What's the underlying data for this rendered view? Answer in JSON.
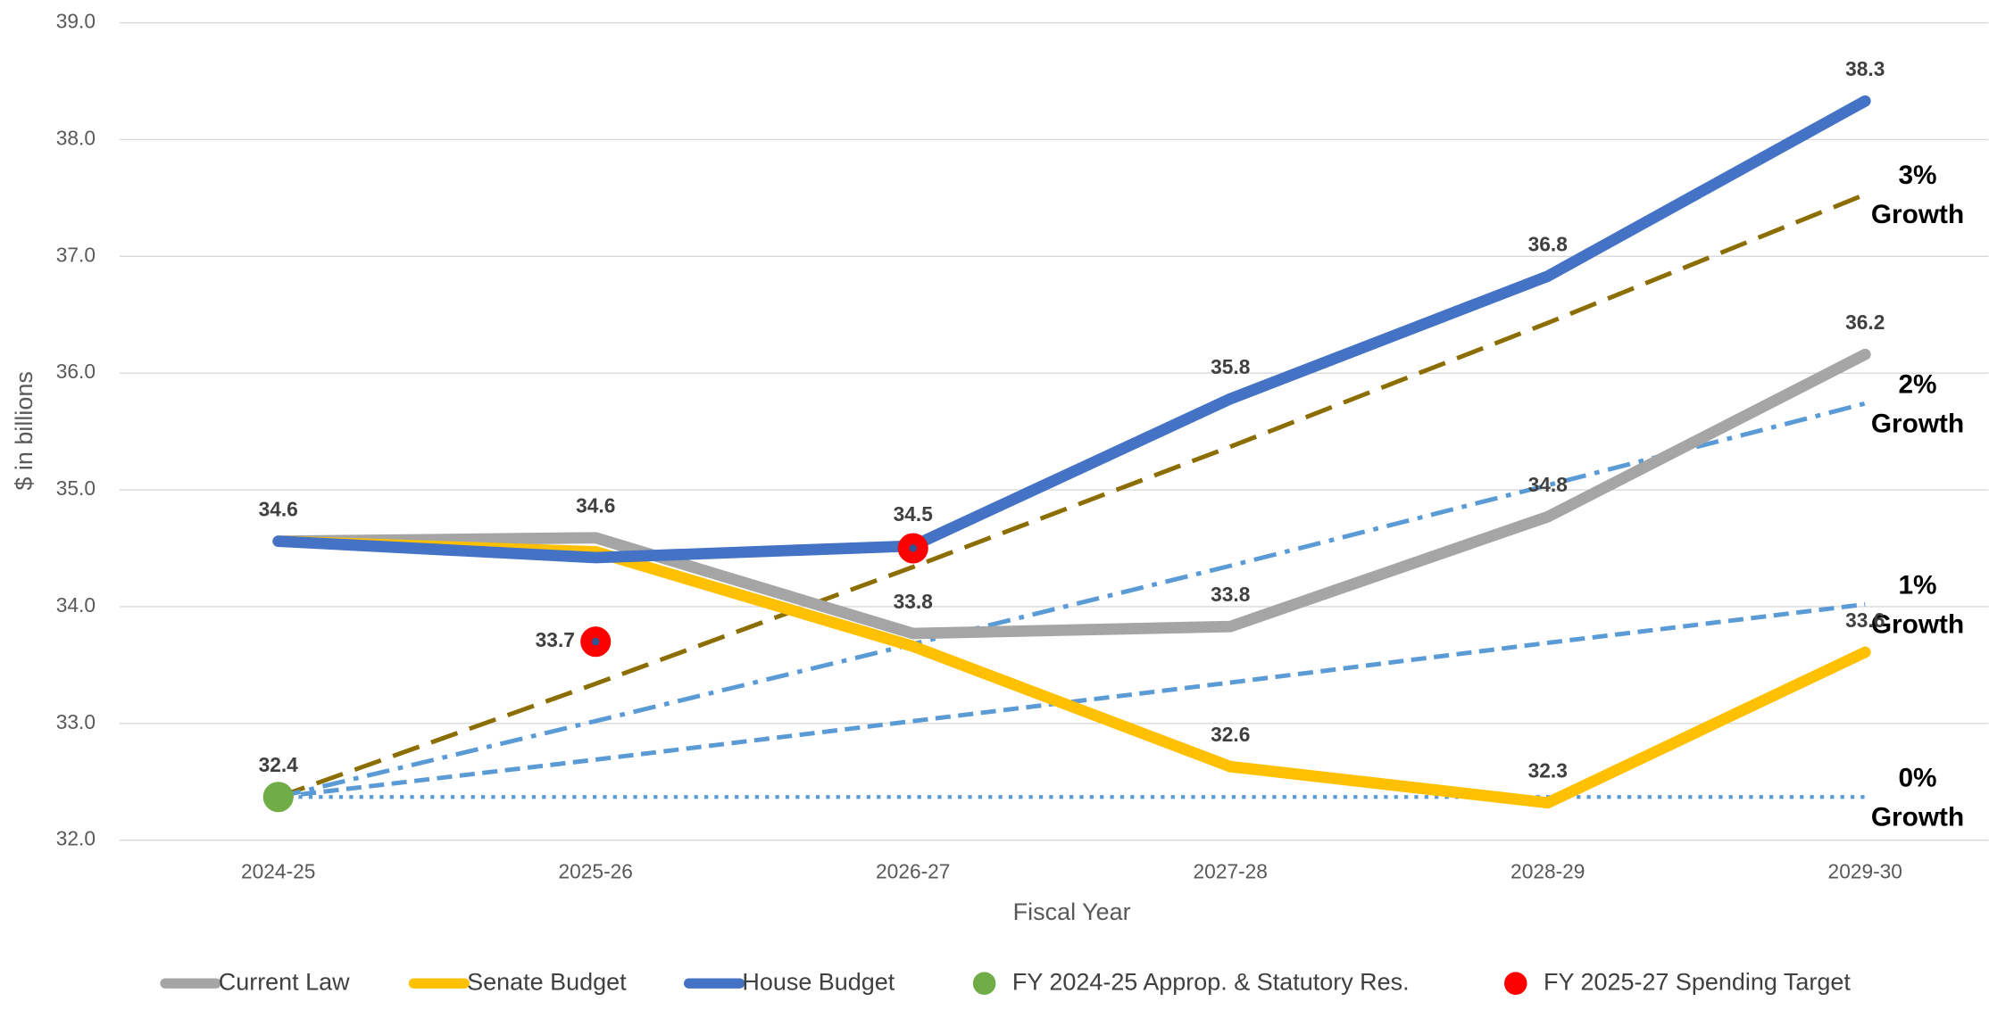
{
  "chart_data": {
    "type": "line",
    "x_label": "Fiscal Year",
    "y_label": "$ in billions",
    "categories": [
      "2024-25",
      "2025-26",
      "2026-27",
      "2027-28",
      "2028-29",
      "2029-30"
    ],
    "ylim": [
      32,
      39
    ],
    "yticks": [
      {
        "value": 32,
        "label": "32.0"
      },
      {
        "value": 33,
        "label": "33.0"
      },
      {
        "value": 34,
        "label": "34.0"
      },
      {
        "value": 35,
        "label": "35.0"
      },
      {
        "value": 36,
        "label": "36.0"
      },
      {
        "value": 37,
        "label": "37.0"
      },
      {
        "value": 38,
        "label": "38.0"
      },
      {
        "value": 39,
        "label": "39.0"
      }
    ],
    "grid": true,
    "legend": "bottom",
    "series": [
      {
        "name": "Current Law",
        "color": "#a5a5a5",
        "style": "solid",
        "values": [
          34.56,
          34.59,
          33.77,
          33.83,
          34.77,
          36.16
        ],
        "value_labels": [
          null,
          "34.6",
          "33.8",
          "33.8",
          "34.8",
          "36.2"
        ]
      },
      {
        "name": "Senate Budget",
        "color": "#ffc000",
        "style": "solid",
        "values": [
          34.56,
          34.47,
          33.66,
          32.63,
          32.32,
          33.61
        ],
        "value_labels": [
          null,
          null,
          null,
          "32.6",
          "32.3",
          "33.6"
        ]
      },
      {
        "name": "House Budget",
        "color": "#4472c4",
        "style": "solid",
        "values": [
          34.56,
          34.42,
          34.52,
          35.78,
          36.83,
          38.33
        ],
        "value_labels": [
          "34.6",
          null,
          "34.5",
          "35.8",
          "36.8",
          "38.3"
        ]
      },
      {
        "name": "FY 2024-25 Approp. & Statutory Res.",
        "color": "#70ad47",
        "style": "marker",
        "values": [
          32.37,
          null,
          null,
          null,
          null,
          null
        ],
        "value_labels": [
          "32.4",
          null,
          null,
          null,
          null,
          null
        ]
      },
      {
        "name": "FY 2025-27 Spending Target",
        "color": "#ff0000",
        "style": "marker",
        "values": [
          null,
          33.7,
          34.5,
          null,
          null,
          null
        ],
        "value_labels": [
          null,
          "33.7",
          null,
          null,
          null,
          null
        ]
      },
      {
        "name": "3% Growth",
        "color": "#8c6d00",
        "style": "longdash",
        "legend": false,
        "values": [
          32.37,
          33.34,
          34.34,
          35.37,
          36.43,
          37.53
        ]
      },
      {
        "name": "2% Growth",
        "color": "#5b9bd5",
        "style": "dashdot",
        "legend": false,
        "values": [
          32.37,
          33.02,
          33.68,
          34.35,
          35.04,
          35.74
        ]
      },
      {
        "name": "1% Growth",
        "color": "#5b9bd5",
        "style": "dash",
        "legend": false,
        "values": [
          32.37,
          32.69,
          33.02,
          33.35,
          33.69,
          34.02
        ]
      },
      {
        "name": "0% Growth",
        "color": "#5b9bd5",
        "style": "dot",
        "legend": false,
        "values": [
          32.37,
          32.37,
          32.37,
          32.37,
          32.37,
          32.37
        ]
      }
    ]
  }
}
